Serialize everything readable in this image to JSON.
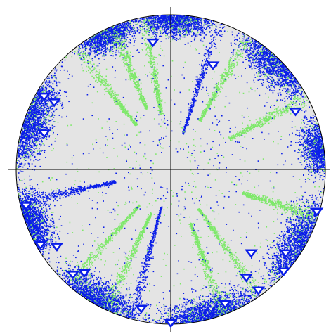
{
  "chart_data": {
    "type": "scatter",
    "projection": "stereonet",
    "title": "",
    "xlabel": "",
    "ylabel": "",
    "grid": false,
    "legend": "none",
    "colors": {
      "background": "#ffffff",
      "net_fill": "#e4e4e4",
      "net_outline": "#000000",
      "crosshair": "#000000",
      "density_high": "#0a1ee8",
      "density_low": "#7ee86a",
      "pole_marker_fill": "#ffffff",
      "pole_marker_stroke": "#0a1ee8"
    },
    "density_lobes": [
      {
        "azimuth": 2,
        "plunge": 2,
        "spread": 22,
        "weight": 1.0,
        "color": "density_high"
      },
      {
        "azimuth": 45,
        "plunge": 5,
        "spread": 28,
        "weight": 1.0,
        "color": "density_high"
      },
      {
        "azimuth": 82,
        "plunge": 4,
        "spread": 18,
        "weight": 0.8,
        "color": "density_high"
      },
      {
        "azimuth": 120,
        "plunge": 6,
        "spread": 30,
        "weight": 1.1,
        "color": "density_high"
      },
      {
        "azimuth": 165,
        "plunge": 4,
        "spread": 30,
        "weight": 1.2,
        "color": "density_high"
      },
      {
        "azimuth": 210,
        "plunge": 5,
        "spread": 28,
        "weight": 1.2,
        "color": "density_high"
      },
      {
        "azimuth": 250,
        "plunge": 4,
        "spread": 20,
        "weight": 1.0,
        "color": "density_high"
      },
      {
        "azimuth": 290,
        "plunge": 5,
        "spread": 30,
        "weight": 1.2,
        "color": "density_high"
      },
      {
        "azimuth": 335,
        "plunge": 3,
        "spread": 20,
        "weight": 0.9,
        "color": "density_high"
      }
    ],
    "streaks": [
      {
        "azimuth": 18,
        "plunge_from": 0,
        "plunge_to": 70,
        "color": "density_high"
      },
      {
        "azimuth": 30,
        "plunge_from": 0,
        "plunge_to": 60,
        "color": "density_low"
      },
      {
        "azimuth": 62,
        "plunge_from": 0,
        "plunge_to": 55,
        "color": "density_low"
      },
      {
        "azimuth": 108,
        "plunge_from": 0,
        "plunge_to": 50,
        "color": "density_low"
      },
      {
        "azimuth": 145,
        "plunge_from": 0,
        "plunge_to": 65,
        "color": "density_low"
      },
      {
        "azimuth": 160,
        "plunge_from": 0,
        "plunge_to": 60,
        "color": "density_low"
      },
      {
        "azimuth": 195,
        "plunge_from": 0,
        "plunge_to": 70,
        "color": "density_high"
      },
      {
        "azimuth": 205,
        "plunge_from": 0,
        "plunge_to": 65,
        "color": "density_low"
      },
      {
        "azimuth": 222,
        "plunge_from": 0,
        "plunge_to": 65,
        "color": "density_low"
      },
      {
        "azimuth": 258,
        "plunge_from": 0,
        "plunge_to": 60,
        "color": "density_high"
      },
      {
        "azimuth": 322,
        "plunge_from": 0,
        "plunge_to": 60,
        "color": "density_low"
      },
      {
        "azimuth": 338,
        "plunge_from": 0,
        "plunge_to": 55,
        "color": "density_low"
      },
      {
        "azimuth": 350,
        "plunge_from": 0,
        "plunge_to": 60,
        "color": "density_low"
      }
    ],
    "poles": [
      {
        "azimuth": 352,
        "plunge": 18
      },
      {
        "azimuth": 22,
        "plunge": 28
      },
      {
        "azimuth": 65,
        "plunge": 12
      },
      {
        "azimuth": 300,
        "plunge": 6
      },
      {
        "azimuth": 300,
        "plunge": 14
      },
      {
        "azimuth": 286,
        "plunge": 16
      },
      {
        "azimuth": 256,
        "plunge": 4
      },
      {
        "azimuth": 240,
        "plunge": 3
      },
      {
        "azimuth": 236,
        "plunge": 12
      },
      {
        "azimuth": 223,
        "plunge": 8
      },
      {
        "azimuth": 220,
        "plunge": 14
      },
      {
        "azimuth": 192,
        "plunge": 9
      },
      {
        "azimuth": 180,
        "plunge": 1
      },
      {
        "azimuth": 158,
        "plunge": 7
      },
      {
        "azimuth": 144,
        "plunge": 4
      },
      {
        "azimuth": 145,
        "plunge": 16
      },
      {
        "azimuth": 136,
        "plunge": 26
      },
      {
        "azimuth": 126,
        "plunge": 9
      },
      {
        "azimuth": 132,
        "plunge": 2
      },
      {
        "azimuth": 106,
        "plunge": 2
      }
    ]
  }
}
